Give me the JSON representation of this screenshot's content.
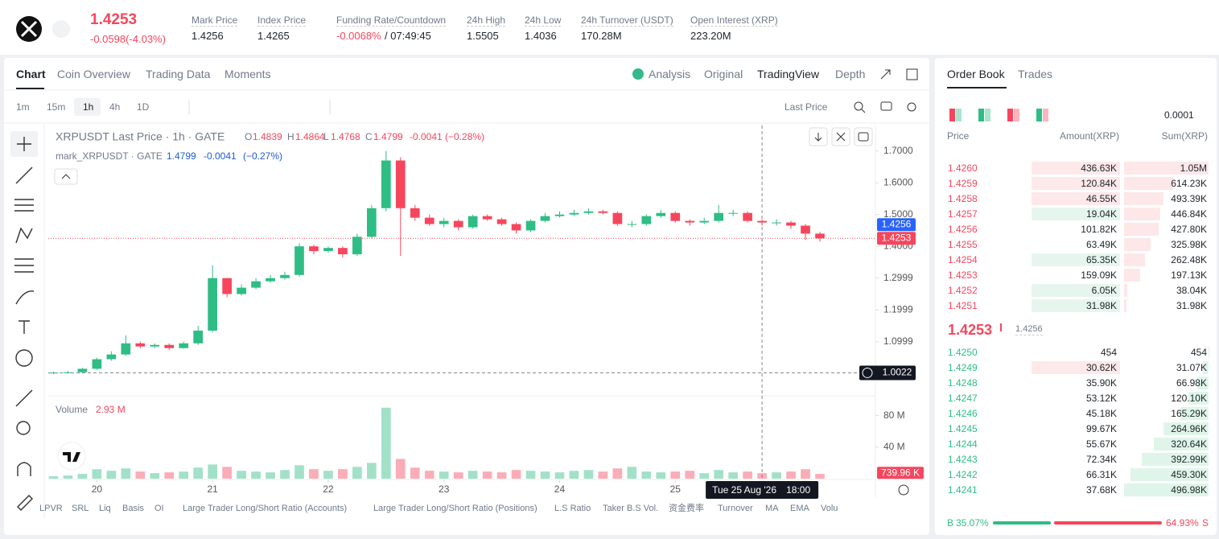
{
  "header": {
    "price": "1.4253",
    "change": "-0.0598(-4.03%)",
    "stats": [
      {
        "label": "Mark Price",
        "value": "1.4256"
      },
      {
        "label": "Index Price",
        "value": "1.4265"
      },
      {
        "label": "Funding Rate/Countdown",
        "value": "-0.0068%",
        "value2": "/ 07:49:45"
      },
      {
        "label": "24h High",
        "value": "1.5505"
      },
      {
        "label": "24h Low",
        "value": "1.4036"
      },
      {
        "label": "24h Turnover (USDT)",
        "value": "170.28M"
      },
      {
        "label": "Open Interest (XRP)",
        "value": "223.20M"
      }
    ]
  },
  "tabs": [
    "Chart",
    "Coin Overview",
    "Trading Data",
    "Moments"
  ],
  "views": [
    "Analysis",
    "Original",
    "TradingView",
    "Depth"
  ],
  "intervals": [
    "1m",
    "15m",
    "1h",
    "4h",
    "1D"
  ],
  "price_source": "Last Price",
  "chart_data": {
    "type": "candlestick",
    "legend": {
      "title": "XRPUSDT Last Price · 1h · GATE",
      "o": "O",
      "o_value": "1.4839",
      "h": "H",
      "h_value": "1.4864",
      "l": "L",
      "l_value": "1.4768",
      "c": "C",
      "c_value": "1.4799",
      "change": "-0.0041 (−0.28%)",
      "mark": "mark_XRPUSDT · GATE",
      "mark_value": "1.4799",
      "mark_change": "-0.0041",
      "mark_pct": "(−0.27%)",
      "volume": "Volume",
      "volume_value": "2.93 M"
    },
    "up_color": "#2ebd85",
    "down_color": "#f6465d",
    "x": [
      19.625,
      19.75,
      19.875,
      20,
      20.125,
      20.25,
      20.375,
      20.5,
      20.625,
      20.75,
      20.875,
      21,
      21.125,
      21.25,
      21.375,
      21.5,
      21.625,
      21.75,
      21.875,
      22,
      22.125,
      22.25,
      22.375,
      22.5,
      22.625,
      22.75,
      22.875,
      23,
      23.125,
      23.25,
      23.375,
      23.5,
      23.625,
      23.75,
      23.875,
      24,
      24.125,
      24.25,
      24.375,
      24.5,
      24.625,
      24.75,
      24.875,
      25,
      25.125,
      25.25,
      25.375,
      25.5,
      25.625,
      25.75,
      25.875,
      26,
      26.125,
      26.25
    ],
    "open": [
      1.001,
      1.003,
      1.004,
      1.015,
      1.045,
      1.06,
      1.095,
      1.085,
      1.09,
      1.08,
      1.095,
      1.135,
      1.3,
      1.25,
      1.27,
      1.29,
      1.3,
      1.31,
      1.4,
      1.385,
      1.395,
      1.375,
      1.43,
      1.52,
      1.67,
      1.52,
      1.49,
      1.47,
      1.48,
      1.46,
      1.495,
      1.485,
      1.47,
      1.45,
      1.48,
      1.495,
      1.5,
      1.505,
      1.51,
      1.505,
      1.47,
      1.47,
      1.495,
      1.505,
      1.48,
      1.475,
      1.48,
      1.505,
      1.505,
      1.48,
      1.475,
      1.475,
      1.465,
      1.44
    ],
    "high": [
      1.006,
      1.008,
      1.018,
      1.05,
      1.07,
      1.12,
      1.1,
      1.095,
      1.095,
      1.1,
      1.15,
      1.34,
      1.3,
      1.28,
      1.3,
      1.31,
      1.32,
      1.41,
      1.405,
      1.4,
      1.4,
      1.44,
      1.53,
      1.7,
      1.68,
      1.53,
      1.5,
      1.49,
      1.485,
      1.5,
      1.5,
      1.49,
      1.475,
      1.485,
      1.505,
      1.51,
      1.515,
      1.52,
      1.515,
      1.51,
      1.48,
      1.5,
      1.515,
      1.51,
      1.485,
      1.49,
      1.53,
      1.515,
      1.51,
      1.485,
      1.485,
      1.48,
      1.47,
      1.445
    ],
    "low": [
      0.998,
      1.0,
      1.002,
      1.012,
      1.04,
      1.055,
      1.08,
      1.08,
      1.075,
      1.078,
      1.09,
      1.13,
      1.24,
      1.245,
      1.265,
      1.285,
      1.295,
      1.305,
      1.375,
      1.38,
      1.365,
      1.37,
      1.425,
      1.51,
      1.37,
      1.48,
      1.465,
      1.46,
      1.45,
      1.455,
      1.48,
      1.465,
      1.44,
      1.445,
      1.475,
      1.49,
      1.495,
      1.5,
      1.5,
      1.465,
      1.46,
      1.465,
      1.49,
      1.475,
      1.465,
      1.47,
      1.475,
      1.495,
      1.475,
      1.465,
      1.465,
      1.455,
      1.42,
      1.415
    ],
    "close": [
      1.003,
      1.004,
      1.015,
      1.045,
      1.06,
      1.095,
      1.085,
      1.09,
      1.08,
      1.095,
      1.135,
      1.3,
      1.25,
      1.27,
      1.29,
      1.3,
      1.31,
      1.4,
      1.385,
      1.395,
      1.375,
      1.43,
      1.52,
      1.67,
      1.52,
      1.49,
      1.47,
      1.48,
      1.46,
      1.495,
      1.485,
      1.47,
      1.45,
      1.48,
      1.495,
      1.5,
      1.505,
      1.51,
      1.505,
      1.47,
      1.47,
      1.495,
      1.505,
      1.48,
      1.475,
      1.48,
      1.505,
      1.505,
      1.48,
      1.475,
      1.475,
      1.465,
      1.44,
      1.4253
    ],
    "volume": [
      3000000,
      4000000,
      6000000,
      12000000,
      10000000,
      13000000,
      9000000,
      7000000,
      8000000,
      9000000,
      14000000,
      18000000,
      15000000,
      10000000,
      9000000,
      8000000,
      11000000,
      17000000,
      12000000,
      10000000,
      12000000,
      15000000,
      20000000,
      90000000,
      25000000,
      14000000,
      10000000,
      9000000,
      8000000,
      10000000,
      9000000,
      8000000,
      11000000,
      10000000,
      9000000,
      8000000,
      10000000,
      11000000,
      9000000,
      13000000,
      15000000,
      9000000,
      8000000,
      9000000,
      10000000,
      7000000,
      11000000,
      8000000,
      9000000,
      7000000,
      8000000,
      9000000,
      12000000,
      6000000
    ],
    "xlim": [
      19.58,
      26.73
    ],
    "xticks": [
      20,
      21,
      22,
      23,
      24,
      25
    ],
    "ylim": [
      0.93,
      1.78
    ],
    "yticks": [
      {
        "value": 1.7,
        "label": "1.7000"
      },
      {
        "value": 1.6,
        "label": "1.6000"
      },
      {
        "value": 1.5,
        "label": "1.5000"
      },
      {
        "value": 1.4,
        "label": "1.4000"
      },
      1.2999,
      1.1999,
      1.0999
    ],
    "volume_ylim": [
      0,
      100000000
    ],
    "volume_yticks": [
      {
        "value": 40000000,
        "label": "40 M"
      },
      {
        "value": 80000000,
        "label": "80 M"
      }
    ],
    "grid": false,
    "last_price": 1.4253,
    "mark_price": 1.4256,
    "volume_tag": {
      "value": 739960,
      "label": "739.96 K"
    },
    "crosshair": {
      "x": 25.75,
      "y": 1.0022,
      "date": "Tue 25 Aug '26",
      "time": "18:00"
    }
  },
  "indicators": [
    "LPVR",
    "SRL",
    "Liq",
    "Basis",
    "OI",
    "Large Trader Long/Short Ratio (Accounts)",
    "Large Trader Long/Short Ratio (Positions)",
    "L.S Ratio",
    "Taker B.S Vol.",
    "资金费率",
    "Turnover",
    "MA",
    "EMA",
    "Volu"
  ],
  "order_book": {
    "tabs": [
      "Order Book",
      "Trades"
    ],
    "precision": "0.0001",
    "columns": [
      "Price",
      "Amount(XRP)",
      "Sum(XRP)"
    ],
    "asks": [
      {
        "price": "1.4260",
        "amount": "436.63K",
        "sum": "1.05M",
        "sum_value": 1050000,
        "flash": "#fde8ea"
      },
      {
        "price": "1.4259",
        "amount": "120.84K",
        "sum": "614.23K",
        "sum_value": 614230,
        "flash": "#fde8ea"
      },
      {
        "price": "1.4258",
        "amount": "46.55K",
        "sum": "493.39K",
        "sum_value": 493390,
        "flash": "#fde8ea"
      },
      {
        "price": "1.4257",
        "amount": "19.04K",
        "sum": "446.84K",
        "sum_value": 446840,
        "flash": "#e6f6ef"
      },
      {
        "price": "1.4256",
        "amount": "101.82K",
        "sum": "427.80K",
        "sum_value": 427800
      },
      {
        "price": "1.4255",
        "amount": "63.49K",
        "sum": "325.98K",
        "sum_value": 325980
      },
      {
        "price": "1.4254",
        "amount": "65.35K",
        "sum": "262.48K",
        "sum_value": 262480,
        "flash": "#e6f6ef"
      },
      {
        "price": "1.4253",
        "amount": "159.09K",
        "sum": "197.13K",
        "sum_value": 197130
      },
      {
        "price": "1.4252",
        "amount": "6.05K",
        "sum": "38.04K",
        "sum_value": 38040,
        "flash": "#e6f6ef"
      },
      {
        "price": "1.4251",
        "amount": "31.98K",
        "sum": "31.98K",
        "sum_value": 31980,
        "flash": "#e6f6ef"
      }
    ],
    "last_price": "1.4253",
    "mark_price": "1.4256",
    "bids": [
      {
        "price": "1.4250",
        "amount": "454",
        "sum": "454",
        "sum_value": 454
      },
      {
        "price": "1.4249",
        "amount": "30.62K",
        "sum": "31.07K",
        "sum_value": 31070,
        "flash": "#fde8ea"
      },
      {
        "price": "1.4248",
        "amount": "35.90K",
        "sum": "66.98K",
        "sum_value": 66980
      },
      {
        "price": "1.4247",
        "amount": "53.12K",
        "sum": "120.10K",
        "sum_value": 120100
      },
      {
        "price": "1.4246",
        "amount": "45.18K",
        "sum": "165.29K",
        "sum_value": 165290
      },
      {
        "price": "1.4245",
        "amount": "99.67K",
        "sum": "264.96K",
        "sum_value": 264960
      },
      {
        "price": "1.4244",
        "amount": "55.67K",
        "sum": "320.64K",
        "sum_value": 320640
      },
      {
        "price": "1.4243",
        "amount": "72.34K",
        "sum": "392.99K",
        "sum_value": 392990
      },
      {
        "price": "1.4242",
        "amount": "66.31K",
        "sum": "459.30K",
        "sum_value": 459300
      },
      {
        "price": "1.4241",
        "amount": "37.68K",
        "sum": "496.98K",
        "sum_value": 496980
      }
    ],
    "ratio": {
      "buy_label": "B",
      "buy": 35.07,
      "buy_text": "35.07%",
      "sell": 64.93,
      "sell_text": "64.93%",
      "sell_label": "S"
    }
  }
}
